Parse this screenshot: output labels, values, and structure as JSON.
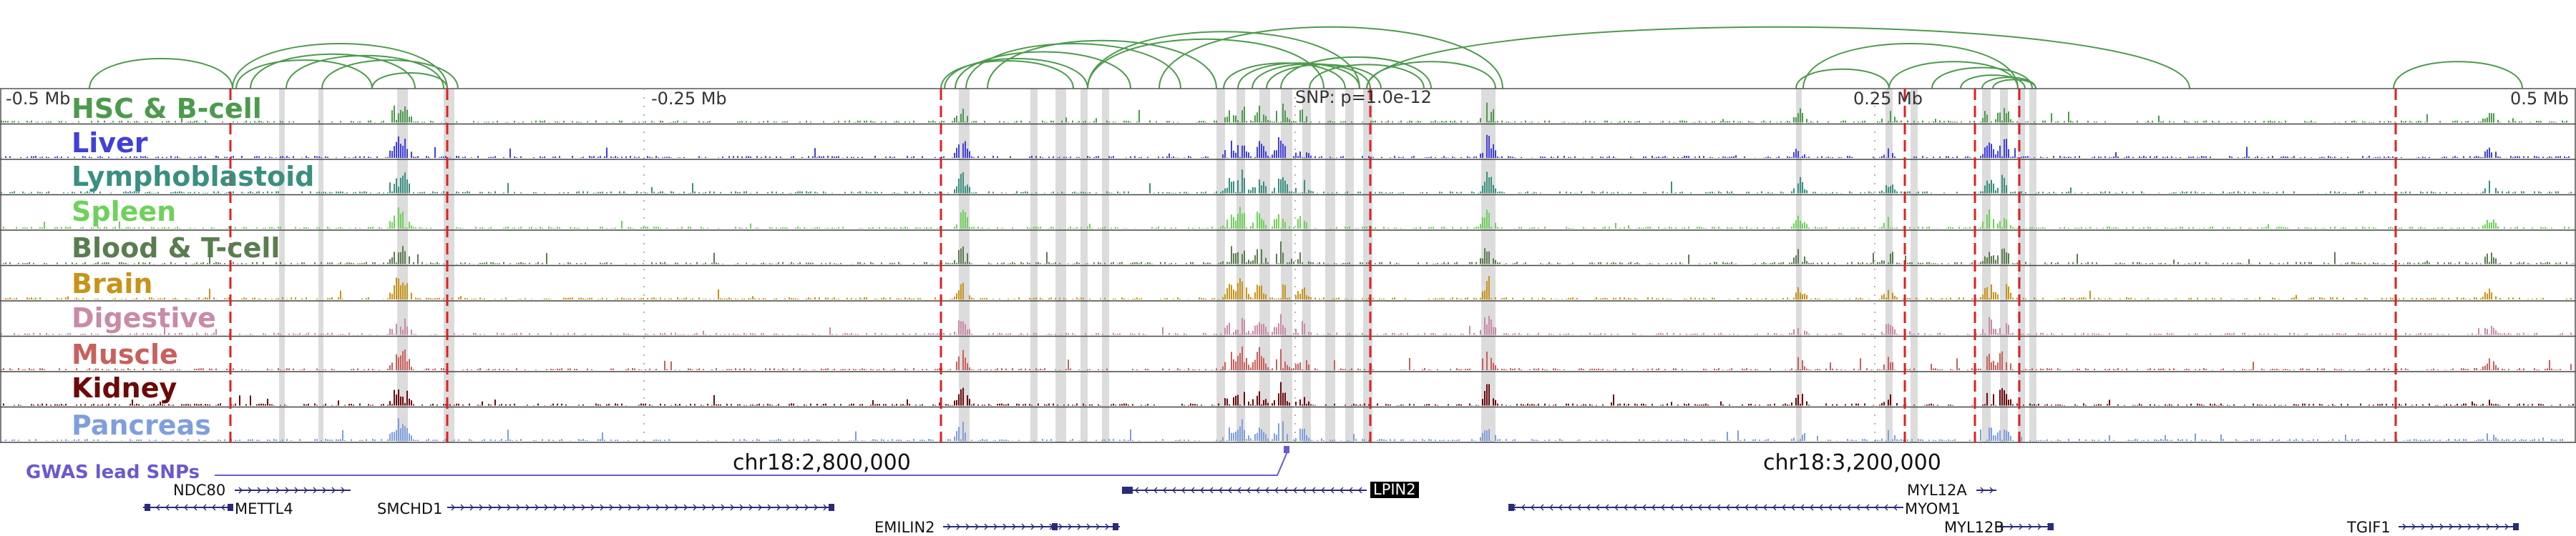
{
  "ruler": {
    "left_label": "-0.5 Mb",
    "mid_left_label": "-0.25 Mb",
    "snp_label": "SNP: p=1.0e-12",
    "mid_right_label": "0.25 Mb",
    "right_label": "0.5 Mb"
  },
  "tracks": [
    {
      "name": "HSC & B-cell",
      "color": "#4c9a4c"
    },
    {
      "name": "Liver",
      "color": "#4040d8"
    },
    {
      "name": "Lymphoblastoid",
      "color": "#3a8f80"
    },
    {
      "name": "Spleen",
      "color": "#6fd15b"
    },
    {
      "name": "Blood & T-cell",
      "color": "#5a7d50"
    },
    {
      "name": "Brain",
      "color": "#c7941a"
    },
    {
      "name": "Digestive",
      "color": "#c98aa8"
    },
    {
      "name": "Muscle",
      "color": "#c8605c"
    },
    {
      "name": "Kidney",
      "color": "#6b0a0a"
    },
    {
      "name": "Pancreas",
      "color": "#7f9fdc"
    }
  ],
  "coordinates": {
    "left": "chr18:2,800,000",
    "right": "chr18:3,200,000"
  },
  "gwas": {
    "label": "GWAS lead SNPs",
    "color": "#6a5acd"
  },
  "genes": {
    "ndc80": "NDC80",
    "mettl4": "METTL4",
    "smchd1": "SMCHD1",
    "emilin2": "EMILIN2",
    "lpin2": "LPIN2",
    "myl12a": "MYL12A",
    "myom1": "MYOM1",
    "myl12b": "MYL12B",
    "tgif1": "TGIF1"
  },
  "colors": {
    "loop_arc": "#4c9a4c",
    "sig_line": "#e02020",
    "highlight": "#dcdcdc",
    "gene": "#2a2a7a"
  }
}
